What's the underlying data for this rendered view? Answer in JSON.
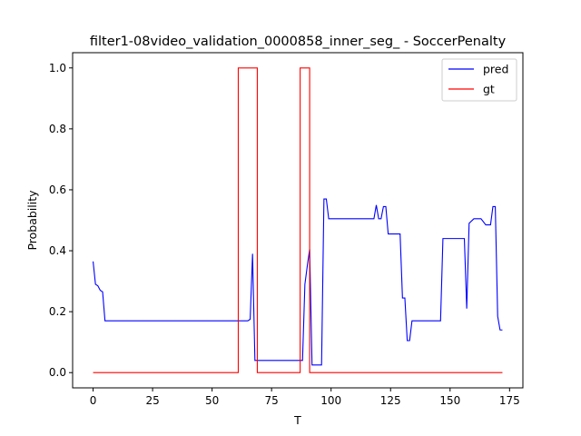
{
  "chart_data": {
    "type": "line",
    "title": "filter1-08video_validation_0000858_inner_seg_ - SoccerPenalty",
    "xlabel": "T",
    "ylabel": "Probability",
    "xlim": [
      -8.6,
      180.6
    ],
    "ylim": [
      -0.05,
      1.05
    ],
    "xticks": [
      0,
      25,
      50,
      75,
      100,
      125,
      150,
      175
    ],
    "yticks": [
      0.0,
      0.2,
      0.4,
      0.6,
      0.8,
      1.0
    ],
    "xtick_labels": [
      "0",
      "25",
      "50",
      "75",
      "100",
      "125",
      "150",
      "175"
    ],
    "ytick_labels": [
      "0.0",
      "0.2",
      "0.4",
      "0.6",
      "0.8",
      "1.0"
    ],
    "legend_position": "upper right",
    "grid": false,
    "series": [
      {
        "name": "pred",
        "color": "#0000ff",
        "x": [
          0,
          1,
          2,
          3,
          4,
          5,
          60,
          65,
          66,
          67,
          68,
          69,
          70,
          75,
          80,
          85,
          88,
          89,
          90,
          91,
          92,
          93,
          95,
          96,
          97,
          98,
          99,
          100,
          105,
          110,
          115,
          118,
          119,
          120,
          121,
          122,
          123,
          124,
          128,
          129,
          130,
          131,
          132,
          133,
          134,
          140,
          145,
          146,
          147,
          150,
          155,
          156,
          157,
          158,
          160,
          162,
          163,
          165,
          167,
          168,
          169,
          170,
          171,
          172
        ],
        "y": [
          0.365,
          0.29,
          0.285,
          0.27,
          0.265,
          0.17,
          0.17,
          0.17,
          0.175,
          0.39,
          0.04,
          0.04,
          0.04,
          0.04,
          0.04,
          0.04,
          0.04,
          0.29,
          0.35,
          0.405,
          0.025,
          0.025,
          0.025,
          0.025,
          0.57,
          0.57,
          0.505,
          0.505,
          0.505,
          0.505,
          0.505,
          0.505,
          0.55,
          0.505,
          0.505,
          0.545,
          0.545,
          0.455,
          0.455,
          0.455,
          0.245,
          0.245,
          0.105,
          0.105,
          0.17,
          0.17,
          0.17,
          0.17,
          0.44,
          0.44,
          0.44,
          0.44,
          0.21,
          0.49,
          0.505,
          0.505,
          0.505,
          0.485,
          0.485,
          0.545,
          0.545,
          0.185,
          0.14,
          0.14
        ]
      },
      {
        "name": "gt",
        "color": "#ff0000",
        "x": [
          0,
          61,
          61,
          69,
          69,
          87,
          87,
          91,
          91,
          172
        ],
        "y": [
          0,
          0,
          1,
          1,
          0,
          0,
          1,
          1,
          0,
          0
        ]
      }
    ]
  }
}
